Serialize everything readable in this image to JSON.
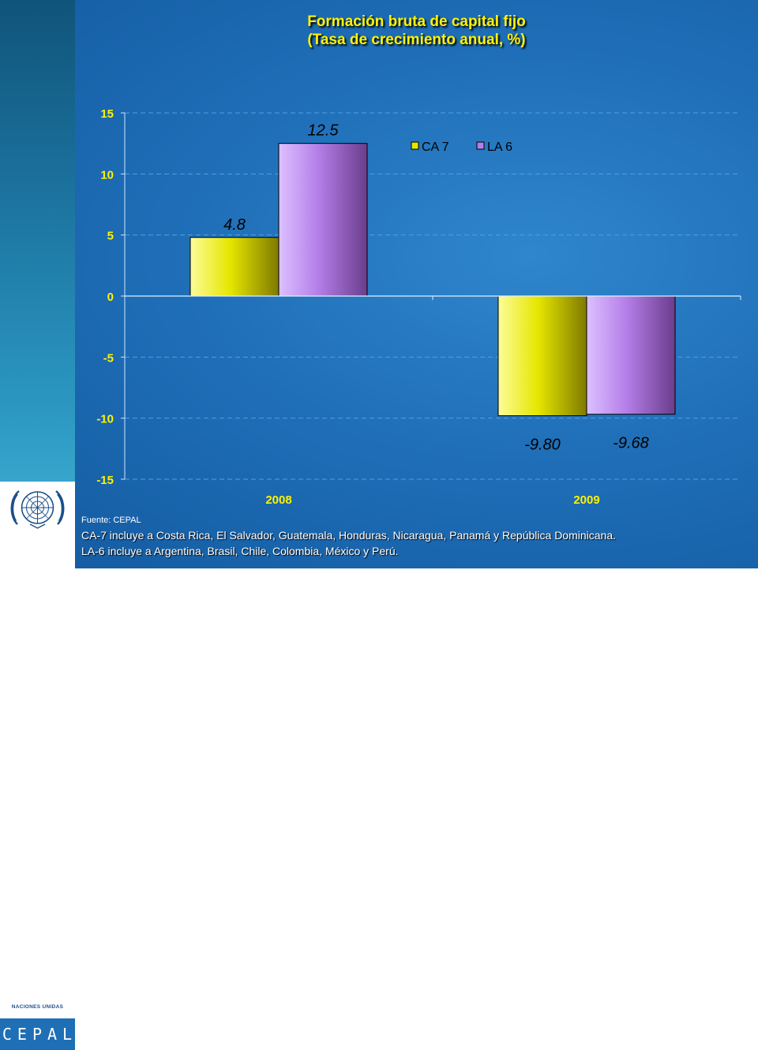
{
  "title_line1": "Formación bruta de capital fijo",
  "title_line2": "(Tasa de crecimiento anual, %)",
  "footer": {
    "source": "Fuente: CEPAL",
    "note1": "CA-7 incluye a Costa Rica, El Salvador, Guatemala, Honduras, Nicaragua, Panamá y República Dominicana.",
    "note2": "LA-6 incluye a Argentina, Brasil, Chile, Colombia, México y Perú."
  },
  "logo": {
    "org_text": "NACIONES UNIDAS",
    "name": "CEPAL"
  },
  "colors": {
    "title": "#fff200",
    "tick_labels": "#fff200",
    "series_CA7": "#e6e600",
    "series_LA6": "#b57ee8",
    "gridline": "#4fa0e0"
  },
  "chart_data": {
    "type": "bar",
    "categories": [
      "2008",
      "2009"
    ],
    "series": [
      {
        "name": "CA 7",
        "values": [
          4.8,
          -9.8
        ],
        "labels": [
          "4.8",
          "-9.80"
        ]
      },
      {
        "name": "LA 6",
        "values": [
          12.5,
          -9.68
        ],
        "labels": [
          "12.5",
          "-9.68"
        ]
      }
    ],
    "yticks": [
      "15",
      "10",
      "5",
      "0",
      "-5",
      "-10",
      "-15"
    ],
    "ylim": [
      -15,
      15
    ],
    "grid": true,
    "legend_position": "top-right"
  }
}
